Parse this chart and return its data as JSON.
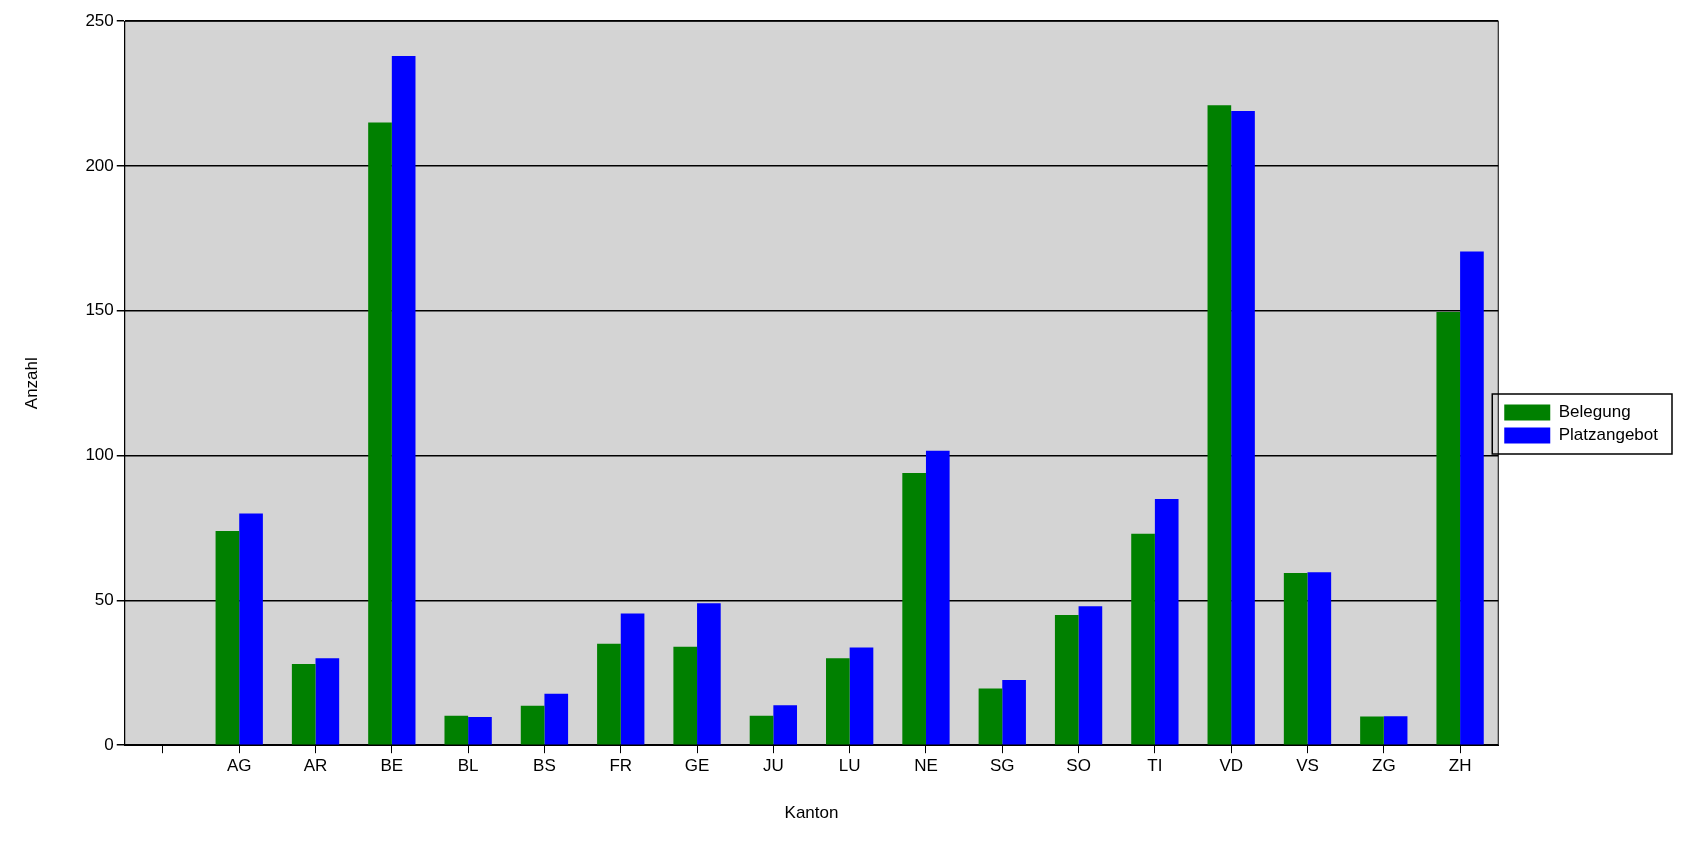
{
  "chart_data": {
    "type": "bar",
    "xlabel": "Kanton",
    "ylabel": "Anzahl",
    "categories": [
      null,
      "AG",
      "AR",
      "BE",
      "BL",
      "BS",
      "FR",
      "GE",
      "JU",
      "LU",
      "NE",
      "SG",
      "SO",
      "TI",
      "VD",
      "VS",
      "ZG",
      "ZH"
    ],
    "series": [
      {
        "name": "Belegung",
        "color": "#008000",
        "values": [
          null,
          74,
          28,
          215,
          10.2,
          13.6,
          35,
          34,
          10.2,
          30,
          94,
          19.6,
          45,
          73,
          221,
          59.5,
          9.9,
          149.6
        ]
      },
      {
        "name": "Platzangebot",
        "color": "#0000ff",
        "values": [
          null,
          80,
          30,
          238,
          9.7,
          17.8,
          45.5,
          49,
          13.8,
          33.7,
          101.7,
          22.5,
          48,
          85,
          219,
          59.7,
          10,
          170.5
        ]
      }
    ],
    "ylim": [
      0,
      250
    ],
    "yticks": [
      0,
      50,
      100,
      150,
      200,
      250
    ],
    "grid": "y",
    "legend": "right"
  }
}
